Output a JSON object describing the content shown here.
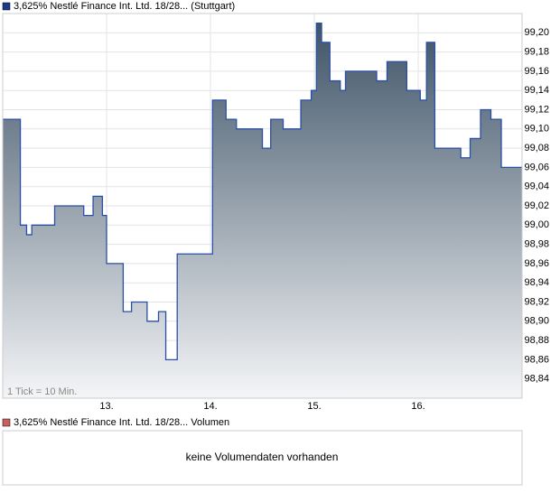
{
  "chart_data": {
    "type": "line",
    "series": [
      {
        "name": "3,625% Nestlé Finance Int. Ltd. 18/28... (Stuttgart)",
        "color": "#2a4fa8",
        "x": [
          12.0,
          12.17,
          12.23,
          12.28,
          12.5,
          12.78,
          12.87,
          12.96,
          13.0,
          13.13,
          13.16,
          13.24,
          13.39,
          13.5,
          13.57,
          13.68,
          14.02,
          14.15,
          14.25,
          14.5,
          14.58,
          14.7,
          14.87,
          14.97,
          15.02,
          15.07,
          15.15,
          15.25,
          15.3,
          15.6,
          15.7,
          15.89,
          16.02,
          16.08,
          16.16,
          16.41,
          16.5,
          16.6,
          16.7,
          16.8
        ],
        "values": [
          99.11,
          99.0,
          98.99,
          99.0,
          99.02,
          99.01,
          99.03,
          99.01,
          98.96,
          98.96,
          98.91,
          98.92,
          98.9,
          98.91,
          98.86,
          98.97,
          99.13,
          99.11,
          99.1,
          99.08,
          99.11,
          99.1,
          99.13,
          99.14,
          99.21,
          99.19,
          99.15,
          99.14,
          99.16,
          99.15,
          99.17,
          99.14,
          99.13,
          99.19,
          99.08,
          99.07,
          99.09,
          99.12,
          99.11,
          99.06
        ]
      }
    ],
    "xlim": [
      12,
      17
    ],
    "xticks": [
      {
        "value": 13,
        "label": "13."
      },
      {
        "value": 14,
        "label": "14."
      },
      {
        "value": 15,
        "label": "15."
      },
      {
        "value": 16,
        "label": "16."
      }
    ],
    "ylim": [
      98.82,
      99.22
    ],
    "yticks": [
      {
        "value": 98.84,
        "label": "98,84"
      },
      {
        "value": 98.86,
        "label": "98,86"
      },
      {
        "value": 98.88,
        "label": "98,88"
      },
      {
        "value": 98.9,
        "label": "98,90"
      },
      {
        "value": 98.92,
        "label": "98,92"
      },
      {
        "value": 98.94,
        "label": "98,94"
      },
      {
        "value": 98.96,
        "label": "98,96"
      },
      {
        "value": 98.98,
        "label": "98,98"
      },
      {
        "value": 99.0,
        "label": "99,00"
      },
      {
        "value": 99.02,
        "label": "99,02"
      },
      {
        "value": 99.04,
        "label": "99,04"
      },
      {
        "value": 99.06,
        "label": "99,06"
      },
      {
        "value": 99.08,
        "label": "99,08"
      },
      {
        "value": 99.1,
        "label": "99,10"
      },
      {
        "value": 99.12,
        "label": "99,12"
      },
      {
        "value": 99.14,
        "label": "99,14"
      },
      {
        "value": 99.16,
        "label": "99,16"
      },
      {
        "value": 99.18,
        "label": "99,18"
      },
      {
        "value": 99.2,
        "label": "99,20"
      }
    ],
    "grid": true,
    "note": "1 Tick = 10 Min."
  },
  "volume_panel": {
    "legend": "3,625% Nestlé Finance Int. Ltd. 18/28... Volumen",
    "message": "keine Volumendaten vorhanden"
  }
}
